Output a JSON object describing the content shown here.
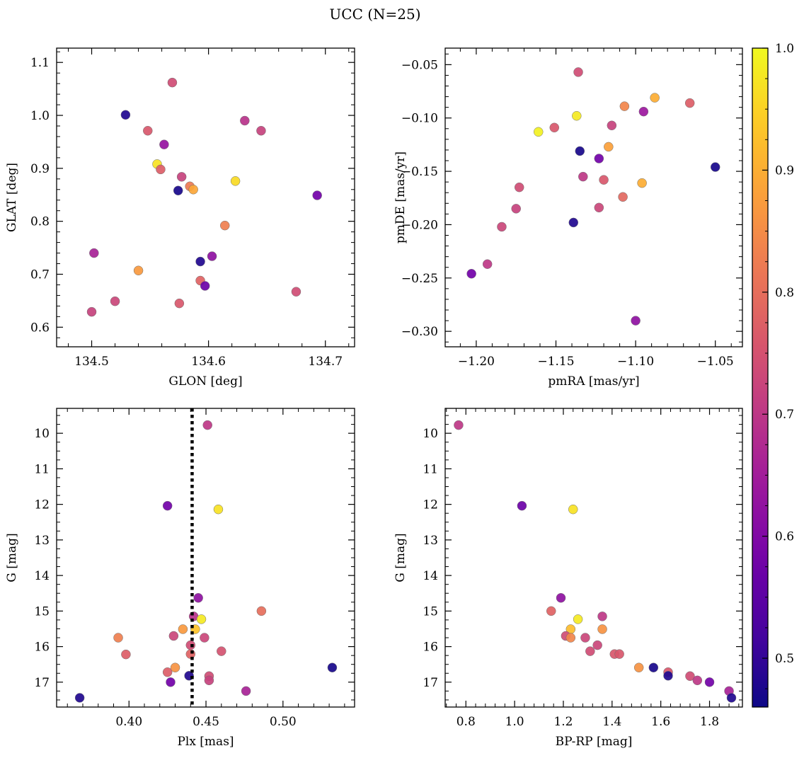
{
  "figure": {
    "title": "UCC (N=25)"
  },
  "colorbar": {
    "cmap": "plasma",
    "range": [
      0.46,
      1.0
    ],
    "ticks": [
      0.5,
      0.6,
      0.7,
      0.8,
      0.9,
      1.0
    ],
    "tick_labels": [
      "0.5",
      "0.6",
      "0.7",
      "0.8",
      "0.9",
      "1.0"
    ]
  },
  "chart_data": [
    {
      "type": "scatter",
      "title": "",
      "xlabel": "GLON [deg]",
      "ylabel": "GLAT [deg]",
      "xlim": [
        134.47,
        134.725
      ],
      "ylim": [
        0.563,
        1.127
      ],
      "xticks": [
        134.5,
        134.6,
        134.7
      ],
      "xtick_labels": [
        "134.5",
        "134.6",
        "134.7"
      ],
      "yticks": [
        0.6,
        0.7,
        0.8,
        0.9,
        1.0,
        1.1
      ],
      "ytick_labels": [
        "0.6",
        "0.7",
        "0.8",
        "0.9",
        "1.0",
        "1.1"
      ],
      "y_inverted": false,
      "grid": false,
      "points": [
        {
          "x": 134.529,
          "y": 1.001,
          "c": 0.48
        },
        {
          "x": 134.569,
          "y": 1.062,
          "c": 0.74
        },
        {
          "x": 134.548,
          "y": 0.971,
          "c": 0.76
        },
        {
          "x": 134.631,
          "y": 0.99,
          "c": 0.69
        },
        {
          "x": 134.645,
          "y": 0.971,
          "c": 0.72
        },
        {
          "x": 134.562,
          "y": 0.945,
          "c": 0.63
        },
        {
          "x": 134.556,
          "y": 0.908,
          "c": 0.97
        },
        {
          "x": 134.559,
          "y": 0.898,
          "c": 0.77
        },
        {
          "x": 134.577,
          "y": 0.884,
          "c": 0.72
        },
        {
          "x": 134.574,
          "y": 0.858,
          "c": 0.47
        },
        {
          "x": 134.584,
          "y": 0.866,
          "c": 0.82
        },
        {
          "x": 134.587,
          "y": 0.86,
          "c": 0.89
        },
        {
          "x": 134.623,
          "y": 0.876,
          "c": 0.96
        },
        {
          "x": 134.693,
          "y": 0.849,
          "c": 0.58
        },
        {
          "x": 134.614,
          "y": 0.792,
          "c": 0.83
        },
        {
          "x": 134.502,
          "y": 0.74,
          "c": 0.66
        },
        {
          "x": 134.603,
          "y": 0.734,
          "c": 0.62
        },
        {
          "x": 134.593,
          "y": 0.724,
          "c": 0.48
        },
        {
          "x": 134.54,
          "y": 0.707,
          "c": 0.87
        },
        {
          "x": 134.593,
          "y": 0.688,
          "c": 0.78
        },
        {
          "x": 134.597,
          "y": 0.678,
          "c": 0.57
        },
        {
          "x": 134.675,
          "y": 0.667,
          "c": 0.74
        },
        {
          "x": 134.52,
          "y": 0.649,
          "c": 0.73
        },
        {
          "x": 134.575,
          "y": 0.645,
          "c": 0.76
        },
        {
          "x": 134.5,
          "y": 0.629,
          "c": 0.72
        }
      ]
    },
    {
      "type": "scatter",
      "title": "",
      "xlabel": "pmRA [mas/yr]",
      "ylabel": "pmDE [mas/yr]",
      "xlim": [
        -1.2195,
        -1.033
      ],
      "ylim": [
        -0.3145,
        -0.0345
      ],
      "xticks": [
        -1.2,
        -1.15,
        -1.1,
        -1.05
      ],
      "xtick_labels": [
        "−1.20",
        "−1.15",
        "−1.10",
        "−1.05"
      ],
      "yticks": [
        -0.3,
        -0.25,
        -0.2,
        -0.15,
        -0.1,
        -0.05
      ],
      "ytick_labels": [
        "−0.30",
        "−0.25",
        "−0.20",
        "−0.15",
        "−0.10",
        "−0.05"
      ],
      "y_inverted": false,
      "grid": false,
      "points": [
        {
          "x": -1.136,
          "y": -0.057,
          "c": 0.74
        },
        {
          "x": -1.088,
          "y": -0.081,
          "c": 0.9
        },
        {
          "x": -1.066,
          "y": -0.086,
          "c": 0.77
        },
        {
          "x": -1.107,
          "y": -0.089,
          "c": 0.84
        },
        {
          "x": -1.095,
          "y": -0.094,
          "c": 0.64
        },
        {
          "x": -1.137,
          "y": -0.098,
          "c": 0.98
        },
        {
          "x": -1.115,
          "y": -0.107,
          "c": 0.72
        },
        {
          "x": -1.151,
          "y": -0.109,
          "c": 0.76
        },
        {
          "x": -1.161,
          "y": -0.113,
          "c": 0.99
        },
        {
          "x": -1.117,
          "y": -0.127,
          "c": 0.88
        },
        {
          "x": -1.135,
          "y": -0.131,
          "c": 0.47
        },
        {
          "x": -1.123,
          "y": -0.138,
          "c": 0.58
        },
        {
          "x": -1.05,
          "y": -0.146,
          "c": 0.47
        },
        {
          "x": -1.133,
          "y": -0.155,
          "c": 0.7
        },
        {
          "x": -1.12,
          "y": -0.158,
          "c": 0.76
        },
        {
          "x": -1.096,
          "y": -0.161,
          "c": 0.9
        },
        {
          "x": -1.173,
          "y": -0.165,
          "c": 0.74
        },
        {
          "x": -1.108,
          "y": -0.174,
          "c": 0.79
        },
        {
          "x": -1.123,
          "y": -0.184,
          "c": 0.73
        },
        {
          "x": -1.175,
          "y": -0.185,
          "c": 0.72
        },
        {
          "x": -1.139,
          "y": -0.198,
          "c": 0.48
        },
        {
          "x": -1.184,
          "y": -0.202,
          "c": 0.73
        },
        {
          "x": -1.193,
          "y": -0.237,
          "c": 0.7
        },
        {
          "x": -1.203,
          "y": -0.246,
          "c": 0.58
        },
        {
          "x": -1.1,
          "y": -0.29,
          "c": 0.62
        }
      ]
    },
    {
      "type": "scatter",
      "title": "",
      "xlabel": "Plx [mas]",
      "ylabel": "G [mag]",
      "xlim": [
        0.353,
        0.5465
      ],
      "ylim": [
        9.3,
        17.7
      ],
      "xticks": [
        0.4,
        0.45,
        0.5
      ],
      "xtick_labels": [
        "0.40",
        "0.45",
        "0.50"
      ],
      "yticks": [
        10,
        11,
        12,
        13,
        14,
        15,
        16,
        17
      ],
      "ytick_labels": [
        "10",
        "11",
        "12",
        "13",
        "14",
        "15",
        "16",
        "17"
      ],
      "y_inverted": true,
      "grid": false,
      "vline": {
        "x": 0.441,
        "style": "dotted"
      },
      "points": [
        {
          "x": 0.451,
          "y": 9.77,
          "c": 0.7
        },
        {
          "x": 0.425,
          "y": 12.04,
          "c": 0.58
        },
        {
          "x": 0.458,
          "y": 12.14,
          "c": 0.97
        },
        {
          "x": 0.445,
          "y": 14.63,
          "c": 0.62
        },
        {
          "x": 0.486,
          "y": 15.0,
          "c": 0.8
        },
        {
          "x": 0.442,
          "y": 15.15,
          "c": 0.69
        },
        {
          "x": 0.447,
          "y": 15.23,
          "c": 0.98
        },
        {
          "x": 0.435,
          "y": 15.51,
          "c": 0.87
        },
        {
          "x": 0.443,
          "y": 15.51,
          "c": 0.93
        },
        {
          "x": 0.429,
          "y": 15.7,
          "c": 0.73
        },
        {
          "x": 0.449,
          "y": 15.75,
          "c": 0.73
        },
        {
          "x": 0.393,
          "y": 15.75,
          "c": 0.83
        },
        {
          "x": 0.44,
          "y": 15.96,
          "c": 0.74
        },
        {
          "x": 0.46,
          "y": 16.13,
          "c": 0.75
        },
        {
          "x": 0.44,
          "y": 16.21,
          "c": 0.78
        },
        {
          "x": 0.398,
          "y": 16.22,
          "c": 0.77
        },
        {
          "x": 0.43,
          "y": 16.59,
          "c": 0.86
        },
        {
          "x": 0.532,
          "y": 16.59,
          "c": 0.47
        },
        {
          "x": 0.425,
          "y": 16.72,
          "c": 0.77
        },
        {
          "x": 0.439,
          "y": 16.82,
          "c": 0.48
        },
        {
          "x": 0.452,
          "y": 16.83,
          "c": 0.74
        },
        {
          "x": 0.452,
          "y": 16.95,
          "c": 0.72
        },
        {
          "x": 0.427,
          "y": 17.0,
          "c": 0.58
        },
        {
          "x": 0.476,
          "y": 17.25,
          "c": 0.66
        },
        {
          "x": 0.368,
          "y": 17.44,
          "c": 0.48
        }
      ]
    },
    {
      "type": "scatter",
      "title": "",
      "xlabel": "BP-RP [mag]",
      "ylabel": "G [mag]",
      "xlim": [
        0.715,
        1.935
      ],
      "ylim": [
        9.3,
        17.7
      ],
      "xticks": [
        0.8,
        1.0,
        1.2,
        1.4,
        1.6,
        1.8
      ],
      "xtick_labels": [
        "0.8",
        "1.0",
        "1.2",
        "1.4",
        "1.6",
        "1.8"
      ],
      "yticks": [
        10,
        11,
        12,
        13,
        14,
        15,
        16,
        17
      ],
      "ytick_labels": [
        "10",
        "11",
        "12",
        "13",
        "14",
        "15",
        "16",
        "17"
      ],
      "y_inverted": true,
      "grid": false,
      "points": [
        {
          "x": 0.77,
          "y": 9.77,
          "c": 0.7
        },
        {
          "x": 1.03,
          "y": 12.04,
          "c": 0.57
        },
        {
          "x": 1.24,
          "y": 12.14,
          "c": 0.97
        },
        {
          "x": 1.19,
          "y": 14.63,
          "c": 0.62
        },
        {
          "x": 1.15,
          "y": 15.0,
          "c": 0.78
        },
        {
          "x": 1.36,
          "y": 15.15,
          "c": 0.7
        },
        {
          "x": 1.26,
          "y": 15.23,
          "c": 0.98
        },
        {
          "x": 1.23,
          "y": 15.51,
          "c": 0.92
        },
        {
          "x": 1.36,
          "y": 15.51,
          "c": 0.86
        },
        {
          "x": 1.21,
          "y": 15.7,
          "c": 0.74
        },
        {
          "x": 1.23,
          "y": 15.75,
          "c": 0.84
        },
        {
          "x": 1.29,
          "y": 15.75,
          "c": 0.73
        },
        {
          "x": 1.34,
          "y": 15.96,
          "c": 0.73
        },
        {
          "x": 1.31,
          "y": 16.13,
          "c": 0.74
        },
        {
          "x": 1.41,
          "y": 16.21,
          "c": 0.76
        },
        {
          "x": 1.43,
          "y": 16.21,
          "c": 0.76
        },
        {
          "x": 1.51,
          "y": 16.59,
          "c": 0.86
        },
        {
          "x": 1.57,
          "y": 16.59,
          "c": 0.47
        },
        {
          "x": 1.63,
          "y": 16.72,
          "c": 0.76
        },
        {
          "x": 1.63,
          "y": 16.82,
          "c": 0.48
        },
        {
          "x": 1.72,
          "y": 16.83,
          "c": 0.74
        },
        {
          "x": 1.75,
          "y": 16.95,
          "c": 0.7
        },
        {
          "x": 1.8,
          "y": 17.0,
          "c": 0.58
        },
        {
          "x": 1.88,
          "y": 17.25,
          "c": 0.66
        },
        {
          "x": 1.89,
          "y": 17.44,
          "c": 0.48
        }
      ]
    }
  ]
}
